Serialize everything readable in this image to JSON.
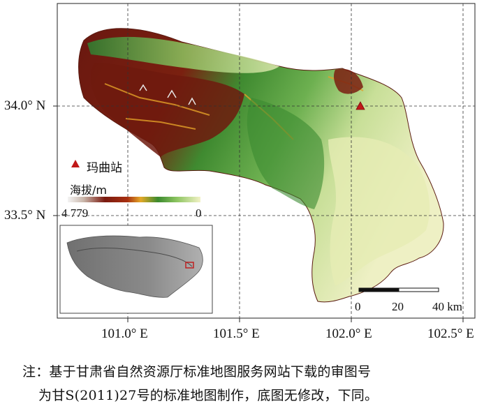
{
  "map": {
    "lon_ticks": [
      "101.0° E",
      "101.5° E",
      "102.0° E",
      "102.5° E"
    ],
    "lat_ticks": [
      "34.0° N",
      "33.5° N"
    ],
    "station": {
      "label": "玛曲站",
      "symbol": "triangle",
      "color": "#c01818"
    },
    "legend": {
      "title": "海拔/m",
      "max_label": "4 779",
      "min_label": "0",
      "colors": [
        "#f0f0f0",
        "#c8b4a8",
        "#7a1a10",
        "#a02818",
        "#e0a020",
        "#4a8a30",
        "#2e8b3a",
        "#a8d070",
        "#f0f0c0"
      ]
    },
    "scale_bar": {
      "labels": [
        "0",
        "20",
        "40 km"
      ]
    },
    "inset": {
      "name": "Tibetan Plateau location map"
    }
  },
  "caption": {
    "line1": "注：基于甘肃省自然资源厅标准地图服务网站下载的审图号",
    "line2": "为甘S(2011)27号的标准地图制作，底图无修改，下同。"
  }
}
